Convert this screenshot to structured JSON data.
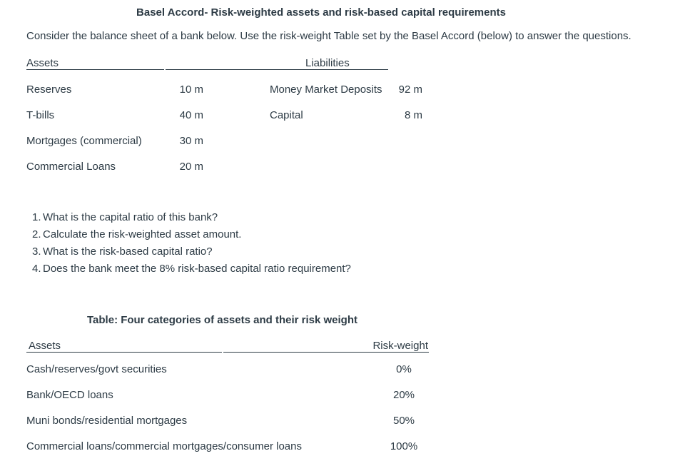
{
  "title": "Basel Accord- Risk-weighted assets and risk-based capital requirements",
  "intro": "Consider the balance sheet of a bank below. Use the risk-weight Table set by the Basel Accord (below) to answer the questions.",
  "colors": {
    "text": "#2D3B45",
    "background": "#ffffff",
    "rule": "#2D3B45"
  },
  "balance_sheet": {
    "assets_header": "Assets",
    "liabilities_header": "Liabilities",
    "assets": [
      {
        "label": "Reserves",
        "amount": "10 m"
      },
      {
        "label": "T-bills",
        "amount": "40 m"
      },
      {
        "label": "Mortgages (commercial)",
        "amount": "30 m"
      },
      {
        "label": "Commercial Loans",
        "amount": "20 m"
      }
    ],
    "liabilities": [
      {
        "label": "Money Market Deposits",
        "amount": "92 m"
      },
      {
        "label": "Capital",
        "amount": "8 m"
      }
    ]
  },
  "questions": [
    {
      "num": "1.",
      "text": "What is the capital ratio of this bank?"
    },
    {
      "num": "2.",
      "text": "Calculate the risk-weighted asset amount."
    },
    {
      "num": "3.",
      "text": "What is the risk-based capital ratio?"
    },
    {
      "num": "4.",
      "text": "Does the bank meet the 8% risk-based capital ratio requirement?"
    }
  ],
  "risk_table": {
    "title": "Table: Four categories of assets and their risk weight",
    "assets_header": "Assets",
    "weight_header": "Risk-weight",
    "rows": [
      {
        "label": "Cash/reserves/govt securities",
        "weight": "0%"
      },
      {
        "label": "Bank/OECD loans",
        "weight": "20%"
      },
      {
        "label": "Muni bonds/residential mortgages",
        "weight": "50%"
      },
      {
        "label": "Commercial loans/commercial mortgages/consumer loans",
        "weight": "100%"
      }
    ]
  }
}
